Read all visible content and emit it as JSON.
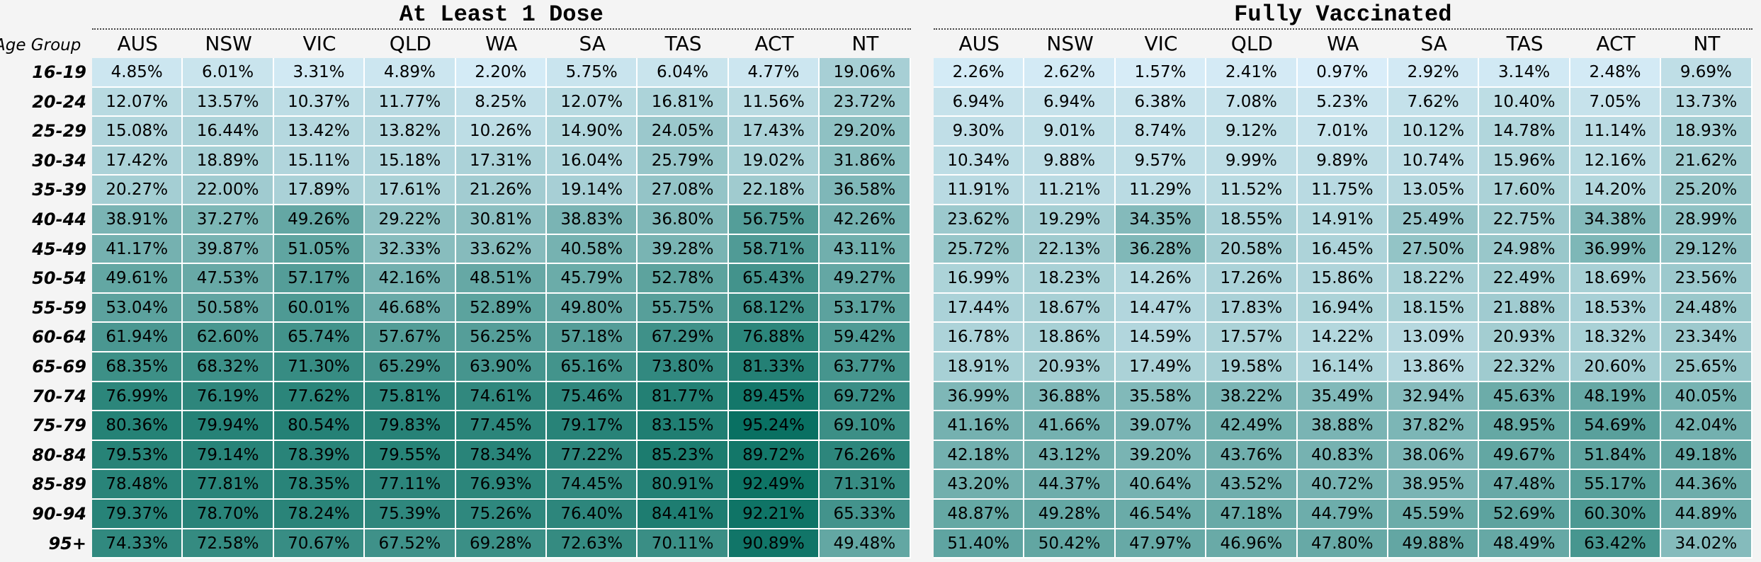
{
  "chart_data": [
    {
      "type": "heatmap",
      "title": "At Least 1 Dose",
      "row_header": "Age Group",
      "columns": [
        "AUS",
        "NSW",
        "VIC",
        "QLD",
        "WA",
        "SA",
        "TAS",
        "ACT",
        "NT"
      ],
      "rows": [
        "16-19",
        "20-24",
        "25-29",
        "30-34",
        "35-39",
        "40-44",
        "45-49",
        "50-54",
        "55-59",
        "60-64",
        "65-69",
        "70-74",
        "75-79",
        "80-84",
        "85-89",
        "90-94",
        "95+"
      ],
      "values": [
        [
          "4.85%",
          "6.01%",
          "3.31%",
          "4.89%",
          "2.20%",
          "5.75%",
          "6.04%",
          "4.77%",
          "19.06%"
        ],
        [
          "12.07%",
          "13.57%",
          "10.37%",
          "11.77%",
          "8.25%",
          "12.07%",
          "16.81%",
          "11.56%",
          "23.72%"
        ],
        [
          "15.08%",
          "16.44%",
          "13.42%",
          "13.82%",
          "10.26%",
          "14.90%",
          "24.05%",
          "17.43%",
          "29.20%"
        ],
        [
          "17.42%",
          "18.89%",
          "15.11%",
          "15.18%",
          "17.31%",
          "16.04%",
          "25.79%",
          "19.02%",
          "31.86%"
        ],
        [
          "20.27%",
          "22.00%",
          "17.89%",
          "17.61%",
          "21.26%",
          "19.14%",
          "27.08%",
          "22.18%",
          "36.58%"
        ],
        [
          "38.91%",
          "37.27%",
          "49.26%",
          "29.22%",
          "30.81%",
          "38.83%",
          "36.80%",
          "56.75%",
          "42.26%"
        ],
        [
          "41.17%",
          "39.87%",
          "51.05%",
          "32.33%",
          "33.62%",
          "40.58%",
          "39.28%",
          "58.71%",
          "43.11%"
        ],
        [
          "49.61%",
          "47.53%",
          "57.17%",
          "42.16%",
          "48.51%",
          "45.79%",
          "52.78%",
          "65.43%",
          "49.27%"
        ],
        [
          "53.04%",
          "50.58%",
          "60.01%",
          "46.68%",
          "52.89%",
          "49.80%",
          "55.75%",
          "68.12%",
          "53.17%"
        ],
        [
          "61.94%",
          "62.60%",
          "65.74%",
          "57.67%",
          "56.25%",
          "57.18%",
          "67.29%",
          "76.88%",
          "59.42%"
        ],
        [
          "68.35%",
          "68.32%",
          "71.30%",
          "65.29%",
          "63.90%",
          "65.16%",
          "73.80%",
          "81.33%",
          "63.77%"
        ],
        [
          "76.99%",
          "76.19%",
          "77.62%",
          "75.81%",
          "74.61%",
          "75.46%",
          "81.77%",
          "89.45%",
          "69.72%"
        ],
        [
          "80.36%",
          "79.94%",
          "80.54%",
          "79.83%",
          "77.45%",
          "79.17%",
          "83.15%",
          "95.24%",
          "69.10%"
        ],
        [
          "79.53%",
          "79.14%",
          "78.39%",
          "79.55%",
          "78.34%",
          "77.22%",
          "85.23%",
          "89.72%",
          "76.26%"
        ],
        [
          "78.48%",
          "77.81%",
          "78.35%",
          "77.11%",
          "76.93%",
          "74.45%",
          "80.91%",
          "92.49%",
          "71.31%"
        ],
        [
          "79.37%",
          "78.70%",
          "78.24%",
          "75.39%",
          "75.26%",
          "76.40%",
          "84.41%",
          "92.21%",
          "65.33%"
        ],
        [
          "74.33%",
          "72.58%",
          "70.67%",
          "67.52%",
          "69.28%",
          "72.63%",
          "70.11%",
          "90.89%",
          "49.48%"
        ]
      ]
    },
    {
      "type": "heatmap",
      "title": "Fully Vaccinated",
      "columns": [
        "AUS",
        "NSW",
        "VIC",
        "QLD",
        "WA",
        "SA",
        "TAS",
        "ACT",
        "NT"
      ],
      "rows": [
        "16-19",
        "20-24",
        "25-29",
        "30-34",
        "35-39",
        "40-44",
        "45-49",
        "50-54",
        "55-59",
        "60-64",
        "65-69",
        "70-74",
        "75-79",
        "80-84",
        "85-89",
        "90-94",
        "95+"
      ],
      "values": [
        [
          "2.26%",
          "2.62%",
          "1.57%",
          "2.41%",
          "0.97%",
          "2.92%",
          "3.14%",
          "2.48%",
          "9.69%"
        ],
        [
          "6.94%",
          "6.94%",
          "6.38%",
          "7.08%",
          "5.23%",
          "7.62%",
          "10.40%",
          "7.05%",
          "13.73%"
        ],
        [
          "9.30%",
          "9.01%",
          "8.74%",
          "9.12%",
          "7.01%",
          "10.12%",
          "14.78%",
          "11.14%",
          "18.93%"
        ],
        [
          "10.34%",
          "9.88%",
          "9.57%",
          "9.99%",
          "9.89%",
          "10.74%",
          "15.96%",
          "12.16%",
          "21.62%"
        ],
        [
          "11.91%",
          "11.21%",
          "11.29%",
          "11.52%",
          "11.75%",
          "13.05%",
          "17.60%",
          "14.20%",
          "25.20%"
        ],
        [
          "23.62%",
          "19.29%",
          "34.35%",
          "18.55%",
          "14.91%",
          "25.49%",
          "22.75%",
          "34.38%",
          "28.99%"
        ],
        [
          "25.72%",
          "22.13%",
          "36.28%",
          "20.58%",
          "16.45%",
          "27.50%",
          "24.98%",
          "36.99%",
          "29.12%"
        ],
        [
          "16.99%",
          "18.23%",
          "14.26%",
          "17.26%",
          "15.86%",
          "18.22%",
          "22.49%",
          "18.69%",
          "23.56%"
        ],
        [
          "17.44%",
          "18.67%",
          "14.47%",
          "17.83%",
          "16.94%",
          "18.15%",
          "21.88%",
          "18.53%",
          "24.48%"
        ],
        [
          "16.78%",
          "18.86%",
          "14.59%",
          "17.57%",
          "14.22%",
          "13.09%",
          "20.93%",
          "18.32%",
          "23.34%"
        ],
        [
          "18.91%",
          "20.93%",
          "17.49%",
          "19.58%",
          "16.14%",
          "13.86%",
          "22.32%",
          "20.60%",
          "25.65%"
        ],
        [
          "36.99%",
          "36.88%",
          "35.58%",
          "38.22%",
          "35.49%",
          "32.94%",
          "45.63%",
          "48.19%",
          "40.05%"
        ],
        [
          "41.16%",
          "41.66%",
          "39.07%",
          "42.49%",
          "38.88%",
          "37.82%",
          "48.95%",
          "54.69%",
          "42.04%"
        ],
        [
          "42.18%",
          "43.12%",
          "39.20%",
          "43.76%",
          "40.83%",
          "38.06%",
          "49.67%",
          "51.84%",
          "49.18%"
        ],
        [
          "43.20%",
          "44.37%",
          "40.64%",
          "43.52%",
          "40.72%",
          "38.95%",
          "47.48%",
          "55.17%",
          "44.36%"
        ],
        [
          "48.87%",
          "49.28%",
          "46.54%",
          "47.18%",
          "44.79%",
          "45.59%",
          "52.69%",
          "60.30%",
          "44.89%"
        ],
        [
          "51.40%",
          "50.42%",
          "47.97%",
          "46.96%",
          "47.80%",
          "49.88%",
          "48.49%",
          "63.42%",
          "34.02%"
        ]
      ]
    }
  ]
}
